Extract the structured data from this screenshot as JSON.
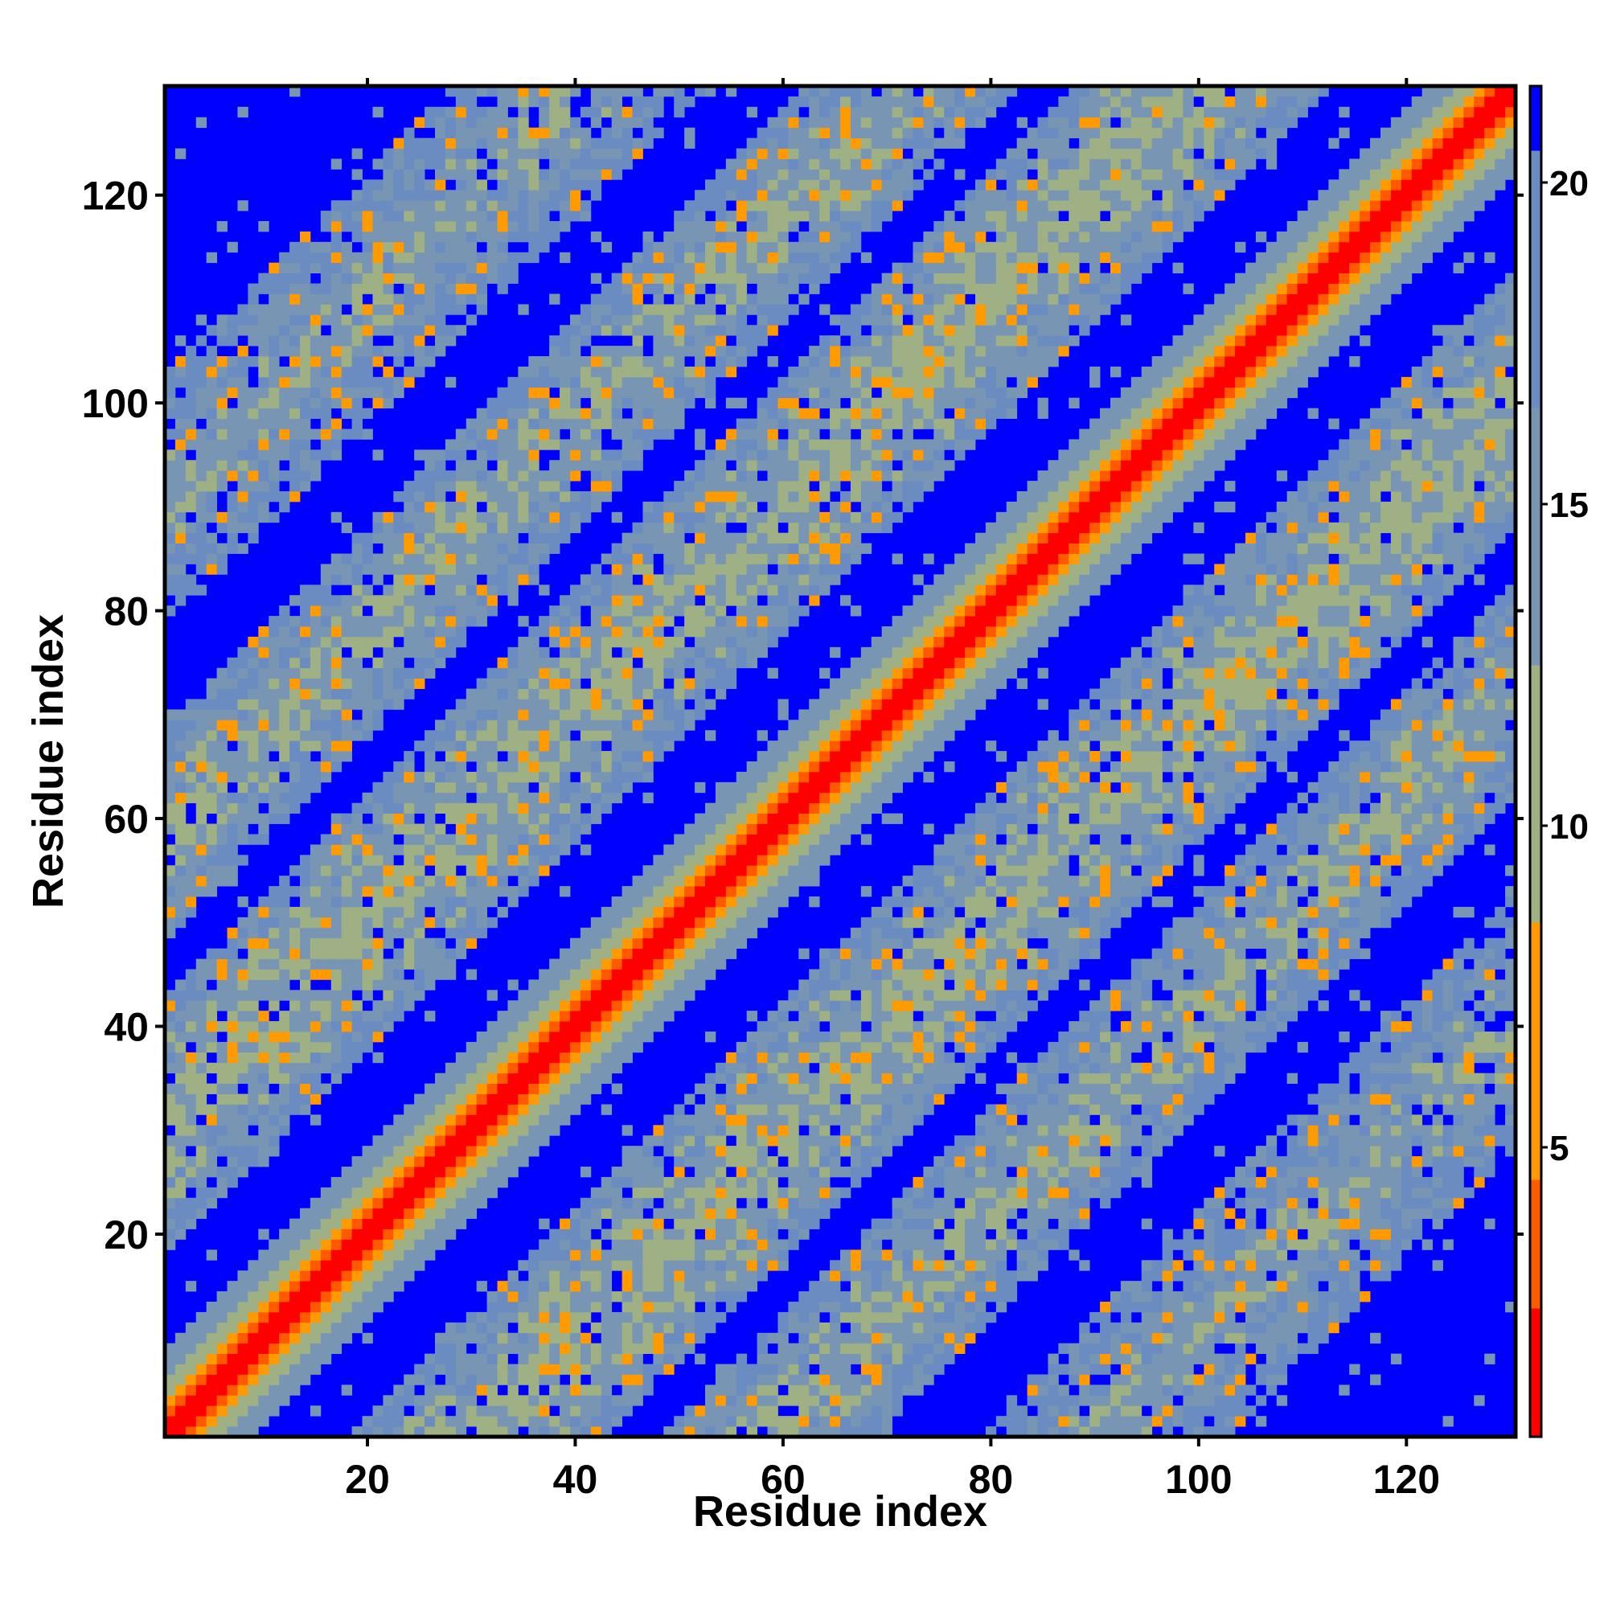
{
  "chart_data": {
    "type": "heatmap",
    "title": "",
    "xlabel": "Residue index",
    "ylabel": "Residue index",
    "xlim": [
      1,
      130
    ],
    "ylim": [
      1,
      130
    ],
    "x_ticks": [
      20,
      40,
      60,
      80,
      100,
      120
    ],
    "y_ticks": [
      20,
      40,
      60,
      80,
      100,
      120
    ],
    "colorbar": {
      "ticks": [
        5,
        10,
        15,
        20
      ],
      "range": [
        0.5,
        21.5
      ],
      "colors": [
        "#ff0000",
        "#ff5a00",
        "#ff9a00",
        "#9fb084",
        "#7896b4",
        "#6a8cc0"
      ],
      "beyond_color": "#0000ff"
    },
    "description_symmetry": "symmetric",
    "diagonal_value": 1.5,
    "bands_offsets": [
      {
        "offset": 0,
        "half_width": 4,
        "core_value": 1.5
      },
      {
        "offset": 30,
        "half_width": 12,
        "core_value": 11
      },
      {
        "offset": 58,
        "half_width": 10,
        "core_value": 12
      },
      {
        "offset": 90,
        "half_width": 12,
        "core_value": 13
      }
    ]
  }
}
